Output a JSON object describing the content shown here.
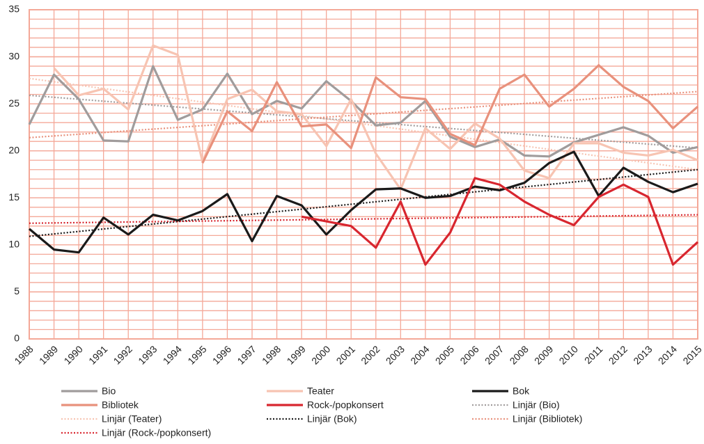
{
  "chart_data": {
    "type": "line",
    "x": [
      1988,
      1989,
      1990,
      1991,
      1992,
      1993,
      1994,
      1995,
      1996,
      1997,
      1998,
      1999,
      2000,
      2001,
      2002,
      2003,
      2004,
      2005,
      2006,
      2007,
      2008,
      2009,
      2010,
      2011,
      2012,
      2013,
      2014,
      2015
    ],
    "xlim": [
      1988,
      2015
    ],
    "ylim": [
      0,
      35
    ],
    "yticks": [
      0,
      5,
      10,
      15,
      20,
      25,
      30,
      35
    ],
    "grid": true,
    "minor_grid_step": 1,
    "grid_color": "#f4a898",
    "series": [
      {
        "name": "Bio",
        "color": "#a09c9c",
        "values": [
          22.8,
          28.1,
          25.5,
          21.1,
          21.0,
          29.0,
          23.3,
          24.4,
          28.2,
          23.9,
          25.3,
          24.5,
          27.4,
          25.3,
          22.7,
          23.0,
          25.3,
          21.5,
          20.4,
          21.2,
          19.5,
          19.4,
          20.9,
          21.7,
          22.5,
          21.6,
          19.8,
          20.4
        ]
      },
      {
        "name": "Teater",
        "color": "#f7c4b2",
        "values": [
          null,
          28.8,
          25.9,
          26.6,
          24.4,
          31.2,
          30.2,
          18.8,
          25.5,
          26.5,
          24.2,
          23.9,
          20.5,
          25.5,
          19.7,
          15.9,
          22.4,
          20.2,
          22.9,
          21.3,
          17.9,
          17.1,
          20.8,
          20.8,
          19.8,
          19.5,
          20.1,
          19.0
        ]
      },
      {
        "name": "Bok",
        "color": "#1a1a1a",
        "values": [
          11.7,
          9.5,
          9.2,
          12.9,
          11.1,
          13.2,
          12.6,
          13.6,
          15.4,
          10.4,
          15.2,
          14.2,
          11.1,
          13.7,
          15.9,
          16.0,
          15.0,
          15.2,
          16.2,
          15.8,
          16.6,
          18.7,
          19.9,
          15.2,
          18.2,
          16.7,
          15.6,
          16.5
        ]
      },
      {
        "name": "Bibliotek",
        "color": "#e8917c",
        "values": [
          null,
          null,
          null,
          null,
          null,
          null,
          null,
          18.7,
          24.2,
          22.1,
          27.3,
          22.6,
          22.8,
          20.3,
          27.8,
          25.7,
          25.5,
          21.8,
          20.6,
          26.6,
          28.1,
          24.7,
          26.6,
          29.1,
          26.8,
          25.3,
          22.4,
          24.7
        ]
      },
      {
        "name": "Rock-/popkonsert",
        "color": "#d8262f",
        "values": [
          null,
          null,
          null,
          null,
          null,
          null,
          null,
          null,
          null,
          null,
          null,
          13.0,
          12.5,
          12.0,
          9.7,
          14.6,
          7.9,
          11.3,
          17.1,
          16.4,
          14.6,
          13.2,
          12.1,
          15.1,
          16.4,
          15.1,
          7.9,
          10.3
        ]
      },
      {
        "name": "Linjär (Bio)",
        "color": "#a09c9c",
        "trend": true,
        "x": [
          1988,
          2015
        ],
        "values": [
          25.9,
          20.3
        ]
      },
      {
        "name": "Linjär (Teater)",
        "color": "#f7c4b2",
        "trend": true,
        "x": [
          1988,
          2015
        ],
        "values": [
          27.7,
          18.0
        ]
      },
      {
        "name": "Linjär (Bok)",
        "color": "#1a1a1a",
        "trend": true,
        "x": [
          1988,
          2015
        ],
        "values": [
          10.9,
          18.0
        ]
      },
      {
        "name": "Linjär (Bibliotek)",
        "color": "#e8917c",
        "trend": true,
        "x": [
          1988,
          2015
        ],
        "values": [
          21.4,
          26.3
        ]
      },
      {
        "name": "Linjär (Rock-/popkonsert)",
        "color": "#d8262f",
        "trend": true,
        "x": [
          1988,
          2015
        ],
        "values": [
          12.3,
          13.2
        ]
      }
    ]
  }
}
